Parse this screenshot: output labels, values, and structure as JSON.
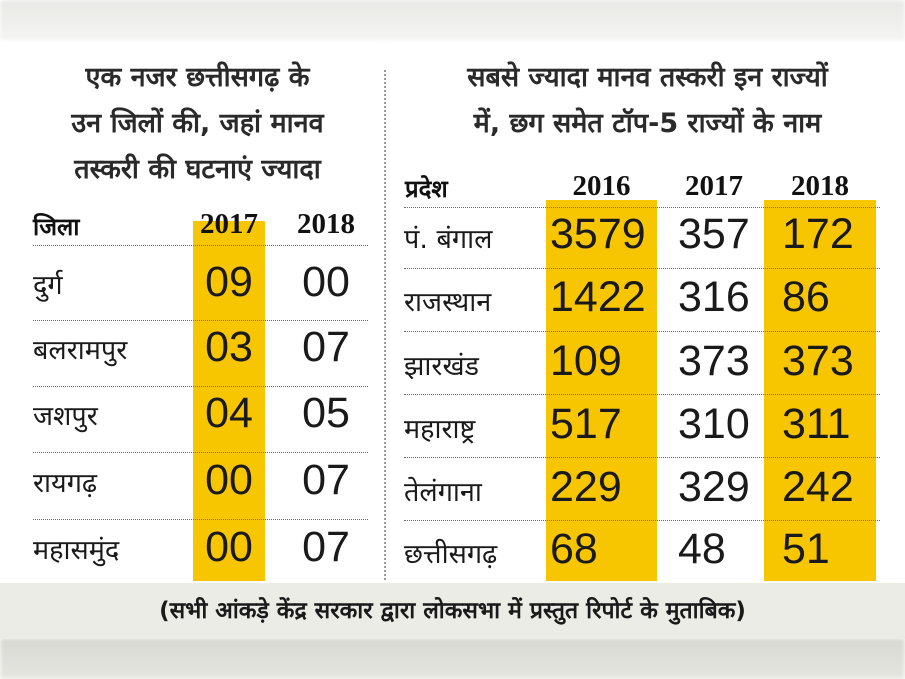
{
  "left": {
    "title_lines": [
      "एक नजर छत्तीसगढ़ के",
      "उन जिलों की, जहां मानव",
      "तस्करी की घटनाएं ज्यादा"
    ],
    "headers": {
      "district": "जिला",
      "y2017": "2017",
      "y2018": "2018"
    },
    "rows": [
      {
        "name": "दुर्ग",
        "v2017": "09",
        "v2018": "00"
      },
      {
        "name": "बलरामपुर",
        "v2017": "03",
        "v2018": "07"
      },
      {
        "name": "जशपुर",
        "v2017": "04",
        "v2018": "05"
      },
      {
        "name": "रायगढ़",
        "v2017": "00",
        "v2018": "07"
      },
      {
        "name": "महासमुंद",
        "v2017": "00",
        "v2018": "07"
      }
    ]
  },
  "right": {
    "title_lines": [
      "सबसे ज्यादा मानव तस्करी इन राज्यों",
      "में, छग समेत टॉप-5 राज्यों के नाम"
    ],
    "headers": {
      "state": "प्रदेश",
      "y2016": "2016",
      "y2017": "2017",
      "y2018": "2018"
    },
    "rows": [
      {
        "name": "पं. बंगाल",
        "v2016": "3579",
        "v2017": "357",
        "v2018": "172"
      },
      {
        "name": "राजस्थान",
        "v2016": "1422",
        "v2017": "316",
        "v2018": "86"
      },
      {
        "name": "झारखंड",
        "v2016": "109",
        "v2017": "373",
        "v2018": "373"
      },
      {
        "name": "महाराष्ट्र",
        "v2016": "517",
        "v2017": "310",
        "v2018": "311"
      },
      {
        "name": "तेलंगाना",
        "v2016": "229",
        "v2017": "329",
        "v2018": "242"
      },
      {
        "name": "छत्तीसगढ़",
        "v2016": "68",
        "v2017": "48",
        "v2018": "51"
      }
    ]
  },
  "footer": "(सभी आंकड़े केंद्र सरकार द्वारा लोकसभा में प्रस्तुत रिपोर्ट के मुताबिक)",
  "colors": {
    "highlight": "#f8c600",
    "footer_bg": "#ecece6"
  }
}
